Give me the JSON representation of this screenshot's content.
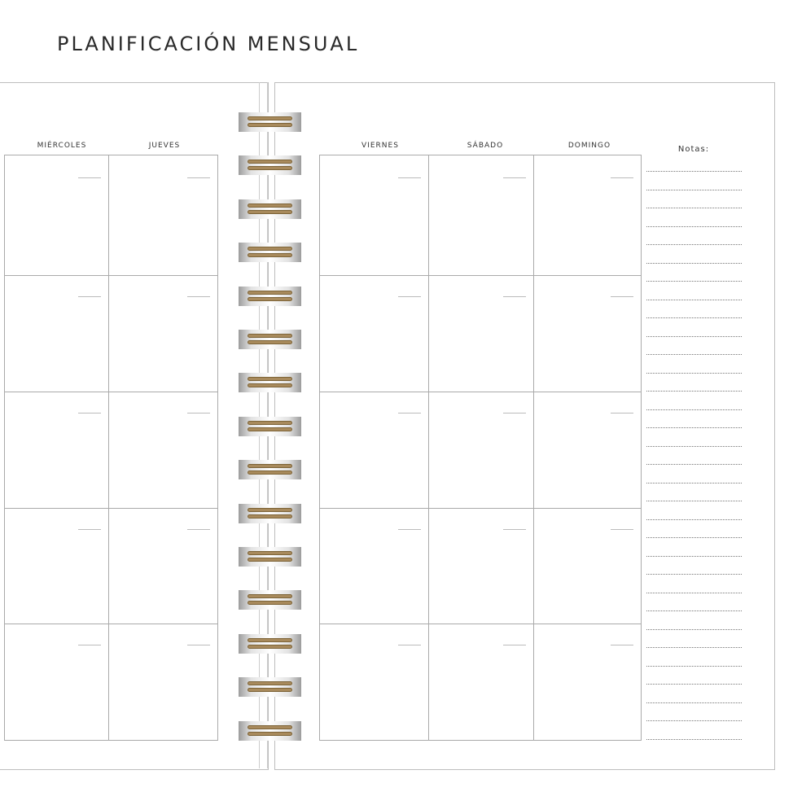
{
  "title": "PLANIFICACIÓN MENSUAL",
  "left_page": {
    "days": [
      "MIÉRCOLES",
      "JUEVES"
    ]
  },
  "right_page": {
    "days": [
      "VIERNES",
      "SÁBADO",
      "DOMINGO"
    ],
    "notes_label": "Notas:"
  },
  "colors": {
    "ring": "#a88a5c",
    "grid": "#aaaaaa"
  }
}
